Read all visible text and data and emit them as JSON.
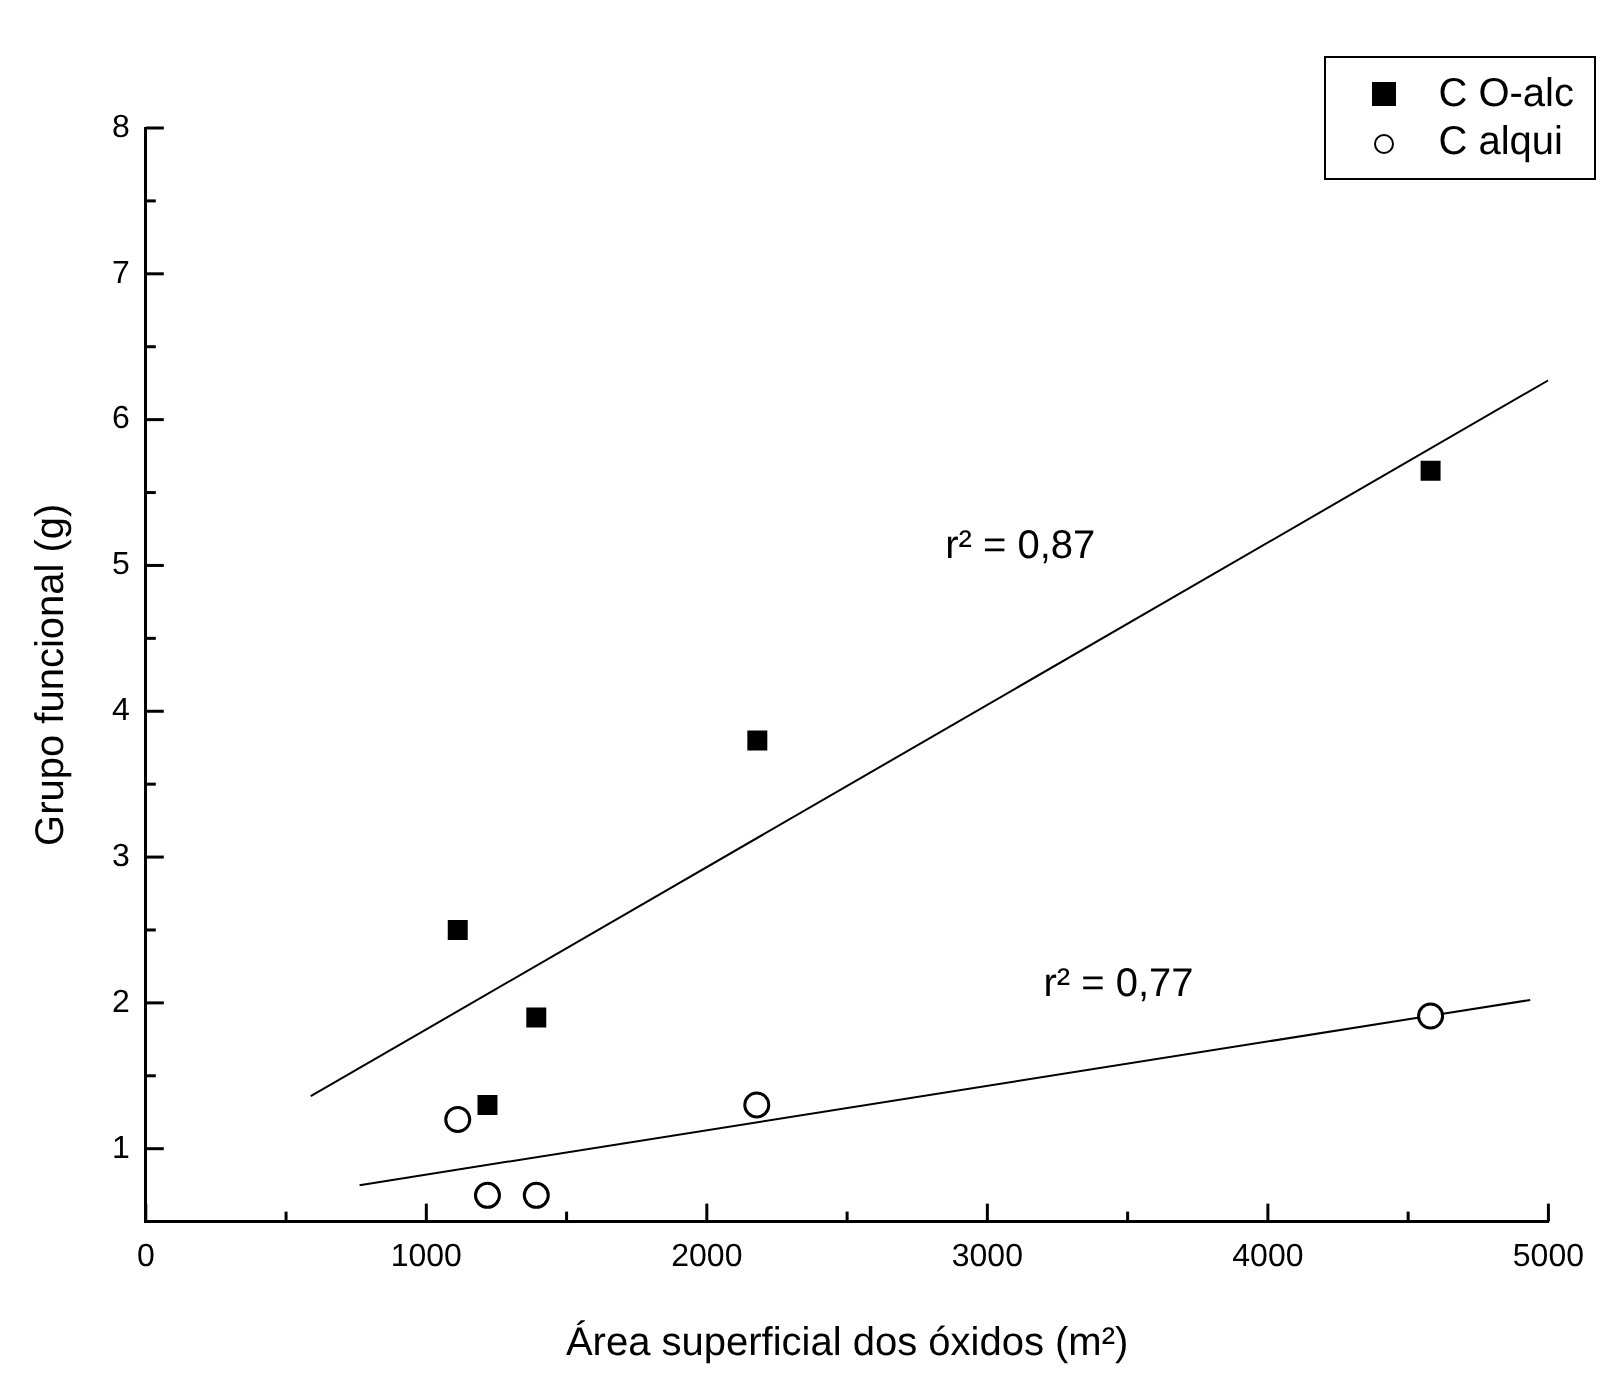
{
  "chart_data": {
    "type": "scatter",
    "xlabel": "Área superficial dos óxidos (m²)",
    "ylabel": "Grupo funcional (g)",
    "series": [
      {
        "name": "C O-alc",
        "color": "#000000",
        "marker": "square",
        "x": [
          1112,
          1218,
          1392,
          2180,
          4580
        ],
        "values": [
          2.5,
          1.3,
          1.9,
          3.8,
          5.65
        ]
      },
      {
        "name": "C alqui",
        "color": "#000000",
        "marker": "circle",
        "x": [
          1112,
          1218,
          1392,
          2178,
          4580
        ],
        "values": [
          1.2,
          0.68,
          0.68,
          1.3,
          1.91
        ]
      },
      {
        "type": "line",
        "color": "#000000",
        "marker": "none",
        "x": [
          588,
          5000
        ],
        "values": [
          1.36,
          6.27
        ]
      },
      {
        "type": "line",
        "color": "#000000",
        "marker": "none",
        "x": [
          762,
          4935
        ],
        "values": [
          0.75,
          2.02
        ]
      }
    ],
    "annotations": [
      "r² = 0,87",
      "r² = 0,77"
    ],
    "xlim": [
      0,
      5000
    ],
    "ylim": [
      0.5,
      8
    ],
    "xticks": [
      0,
      {
        "value": 500,
        "label": null
      },
      1000,
      {
        "value": 1500,
        "label": null
      },
      2000,
      {
        "value": 2500,
        "label": null
      },
      3000,
      {
        "value": 3500,
        "label": null
      },
      4000,
      {
        "value": 4500,
        "label": null
      },
      5000
    ],
    "yticks": [
      1,
      {
        "value": 1.5,
        "label": null
      },
      2,
      {
        "value": 2.5,
        "label": null
      },
      3,
      {
        "value": 3.5,
        "label": null
      },
      4,
      {
        "value": 4.5,
        "label": null
      },
      5,
      {
        "value": 5.5,
        "label": null
      },
      6,
      {
        "value": 6.5,
        "label": null
      },
      7,
      {
        "value": 7.5,
        "label": null
      },
      8
    ],
    "grid": false,
    "legend": "top right"
  }
}
